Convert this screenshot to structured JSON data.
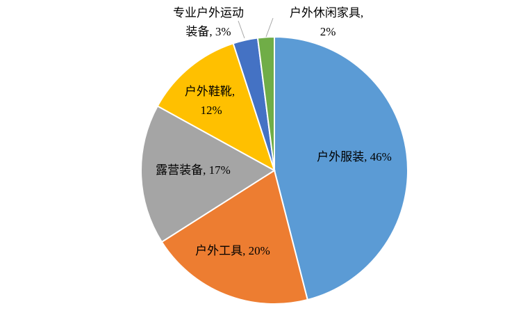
{
  "chart_data": {
    "type": "pie",
    "values": [
      46,
      20,
      17,
      12,
      3,
      2
    ],
    "value_labels": [
      "户外服装, 46%",
      "户外工具, 20%",
      "露营装备, 17%",
      "户外鞋靴, 12%",
      "专业户外运动装备, 3%",
      "户外休闲家具, 2%"
    ],
    "colors": [
      "#5b9bd5",
      "#ed7d31",
      "#a5a5a5",
      "#ffc000",
      "#4472c4",
      "#70ad47"
    ]
  }
}
